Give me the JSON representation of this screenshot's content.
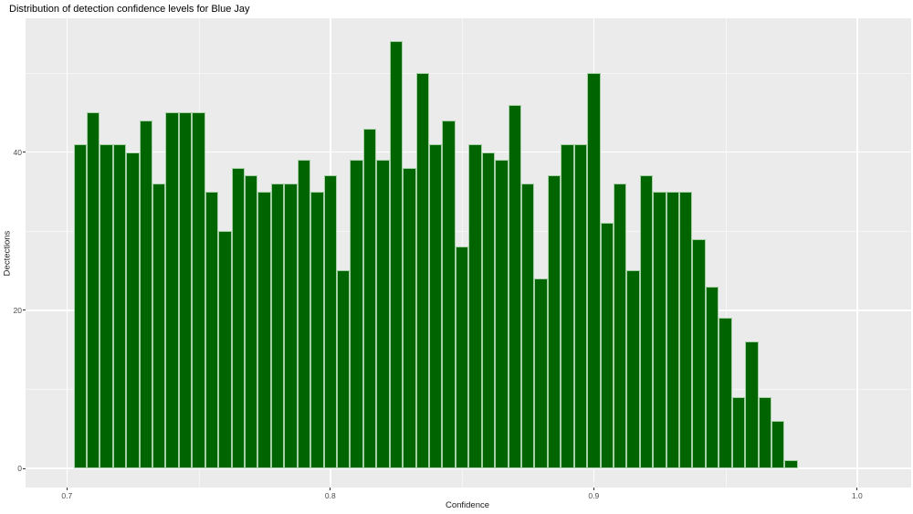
{
  "title": "Distribution of detection confidence levels for Blue Jay",
  "chart_data": {
    "type": "bar",
    "subtype": "histogram",
    "title": "Distribution of detection confidence levels for Blue Jay",
    "xlabel": "Confidence",
    "ylabel": "Dectections",
    "bin_start": 0.7025,
    "bin_width": 0.005,
    "counts": [
      41,
      45,
      41,
      41,
      40,
      44,
      36,
      45,
      45,
      45,
      35,
      30,
      38,
      37,
      35,
      36,
      36,
      39,
      35,
      37,
      25,
      39,
      43,
      39,
      54,
      38,
      50,
      41,
      44,
      28,
      41,
      40,
      39,
      46,
      36,
      24,
      37,
      41,
      41,
      50,
      31,
      36,
      25,
      37,
      35,
      35,
      35,
      29,
      23,
      19,
      9,
      16,
      9,
      6,
      1
    ],
    "x_ticks": [
      0.7,
      0.8,
      0.9,
      1.0
    ],
    "x_tick_labels": [
      "0.7",
      "0.8",
      "0.9",
      "1.0"
    ],
    "x_minor_ticks": [
      0.75,
      0.85,
      0.95
    ],
    "y_ticks": [
      0,
      20,
      40
    ],
    "y_tick_labels": [
      "0",
      "20",
      "40"
    ],
    "y_minor_ticks": [
      10,
      30,
      50
    ],
    "xlim": [
      0.685,
      1.02
    ],
    "ylim": [
      0,
      56.8
    ],
    "grid": "on",
    "legend_position": "none",
    "bar_fill": "#006400",
    "bar_edge": "#a5cfa5",
    "panel_bg": "#EBEBEB",
    "grid_color": "#FFFFFF",
    "tick_label_color": "#4D4D4D",
    "text_color": "#000000"
  }
}
